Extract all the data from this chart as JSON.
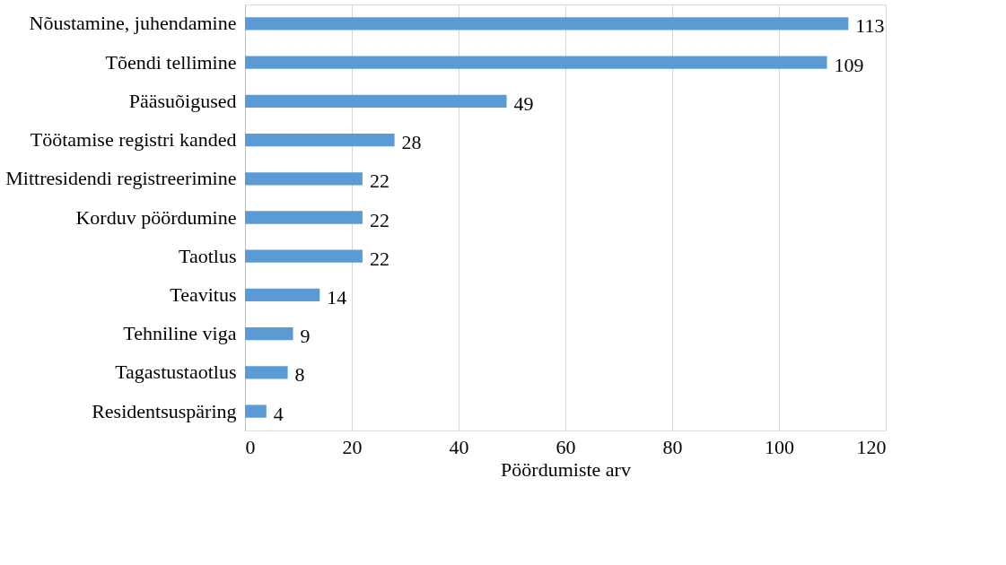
{
  "chart_data": {
    "type": "bar",
    "orientation": "horizontal",
    "xlabel": "Pöördumiste arv",
    "categories": [
      "Nõustamine, juhendamine",
      "Tõendi tellimine",
      "Pääsuõigused",
      "Töötamise registri kanded",
      "Mittresidendi registreerimine",
      "Korduv pöördumine",
      "Taotlus",
      "Teavitus",
      "Tehniline viga",
      "Tagastustaotlus",
      "Residentsuspäring"
    ],
    "values": [
      113,
      109,
      49,
      28,
      22,
      22,
      22,
      14,
      9,
      8,
      4
    ],
    "color": "#5b9bd5",
    "xlim": [
      0,
      120
    ],
    "xticks": [
      0,
      20,
      40,
      60,
      80,
      100,
      120
    ],
    "grid": "x",
    "data_labels": true
  }
}
